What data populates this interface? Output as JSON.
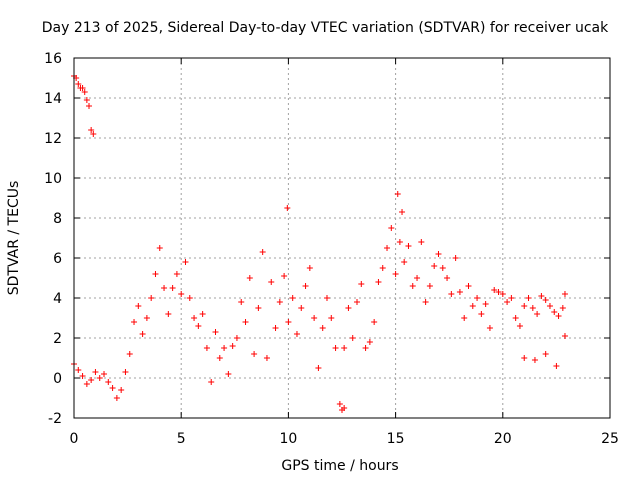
{
  "chart_data": {
    "type": "scatter",
    "title": "Day 213 of 2025, Sidereal Day-to-day VTEC variation (SDTVAR) for receiver ucak",
    "xlabel": "GPS time / hours",
    "ylabel": "SDTVAR / TECUs",
    "xlim": [
      0,
      25
    ],
    "ylim": [
      -2,
      16
    ],
    "xticks": [
      0,
      5,
      10,
      15,
      20,
      25
    ],
    "yticks": [
      -2,
      0,
      2,
      4,
      6,
      8,
      10,
      12,
      14,
      16
    ],
    "grid": true,
    "marker": "+",
    "series": [
      {
        "name": "SDTVAR",
        "color": "#ff0000",
        "x": [
          0.0,
          0.1,
          0.2,
          0.3,
          0.4,
          0.5,
          0.6,
          0.7,
          0.8,
          0.9,
          0.0,
          0.2,
          0.4,
          0.6,
          0.8,
          1.0,
          1.2,
          1.4,
          1.6,
          1.8,
          2.0,
          2.2,
          2.4,
          2.6,
          2.8,
          3.0,
          3.2,
          3.4,
          3.6,
          3.8,
          4.0,
          4.2,
          4.4,
          4.6,
          4.8,
          5.0,
          5.2,
          5.4,
          5.6,
          5.8,
          6.0,
          6.2,
          6.4,
          6.6,
          6.8,
          7.0,
          7.2,
          7.4,
          7.6,
          7.8,
          8.0,
          8.2,
          8.4,
          8.6,
          8.8,
          9.0,
          9.2,
          9.4,
          9.6,
          9.8,
          10.0,
          10.2,
          10.4,
          10.6,
          10.8,
          11.0,
          11.2,
          11.4,
          11.6,
          11.8,
          12.0,
          12.2,
          12.4,
          12.6,
          12.8,
          13.0,
          13.2,
          13.4,
          13.6,
          13.8,
          14.0,
          14.2,
          14.4,
          14.6,
          14.8,
          15.0,
          15.2,
          15.4,
          15.6,
          15.8,
          16.0,
          16.2,
          16.4,
          16.6,
          16.8,
          17.0,
          17.2,
          17.4,
          17.6,
          17.8,
          18.0,
          18.2,
          18.4,
          18.6,
          18.8,
          19.0,
          19.2,
          19.4,
          19.6,
          19.8,
          20.0,
          20.2,
          20.4,
          20.6,
          20.8,
          21.0,
          21.2,
          21.4,
          21.6,
          21.8,
          22.0,
          22.2,
          22.4,
          22.6,
          22.8,
          22.9,
          21.0,
          21.5,
          22.0,
          22.5,
          22.9,
          9.95,
          15.1,
          15.3,
          12.5,
          12.6
        ],
        "y": [
          15.1,
          15.0,
          14.7,
          14.5,
          14.5,
          14.3,
          13.9,
          13.6,
          12.4,
          12.2,
          0.7,
          0.4,
          0.1,
          -0.3,
          -0.1,
          0.3,
          0.0,
          0.2,
          -0.2,
          -0.5,
          -1.0,
          -0.6,
          0.3,
          1.2,
          2.8,
          3.6,
          2.2,
          3.0,
          4.0,
          5.2,
          6.5,
          4.5,
          3.2,
          4.5,
          5.2,
          4.2,
          5.8,
          4.0,
          3.0,
          2.6,
          3.2,
          1.5,
          -0.2,
          2.3,
          1.0,
          1.5,
          0.2,
          1.6,
          2.0,
          3.8,
          2.8,
          5.0,
          1.2,
          3.5,
          6.3,
          1.0,
          4.8,
          2.5,
          3.8,
          5.1,
          2.8,
          4.0,
          2.2,
          3.5,
          4.6,
          5.5,
          3.0,
          0.5,
          2.5,
          4.0,
          3.0,
          1.5,
          -1.3,
          1.5,
          3.5,
          2.0,
          3.8,
          4.7,
          1.5,
          1.8,
          2.8,
          4.8,
          5.5,
          6.5,
          7.5,
          5.2,
          6.8,
          5.8,
          6.6,
          4.6,
          5.0,
          6.8,
          3.8,
          4.6,
          5.6,
          6.2,
          5.5,
          5.0,
          4.2,
          6.0,
          4.3,
          3.0,
          4.6,
          3.6,
          4.0,
          3.2,
          3.7,
          2.5,
          4.4,
          4.3,
          4.2,
          3.8,
          4.0,
          3.0,
          2.6,
          3.6,
          4.0,
          3.5,
          3.2,
          4.1,
          3.9,
          3.6,
          3.3,
          3.1,
          3.5,
          4.2,
          1.0,
          0.9,
          1.2,
          0.6,
          2.1,
          8.5,
          9.2,
          8.3,
          -1.6,
          -1.5
        ]
      }
    ]
  }
}
